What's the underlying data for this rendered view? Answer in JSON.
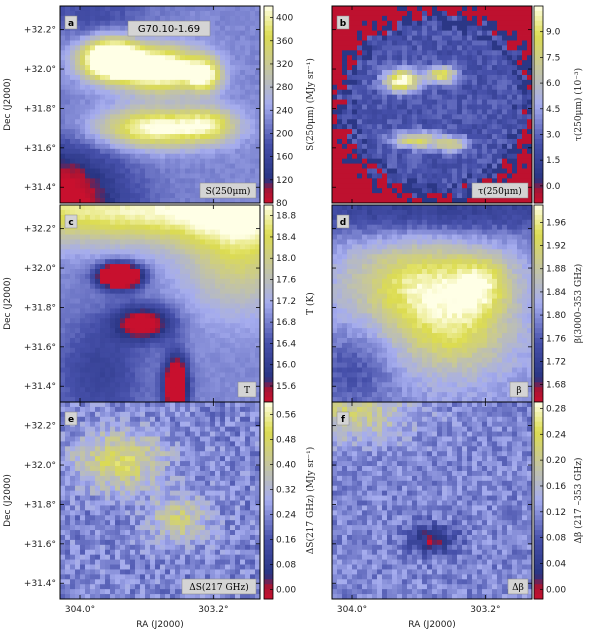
{
  "chart_data": {
    "type": "heatmap",
    "title": "G70.10-1.69",
    "xlabel": "RA (J2000)",
    "ylabel": "Dec (J2000)",
    "x_ticks": [
      "304.0°",
      "303.2°"
    ],
    "x_tick_values": [
      304.0,
      303.2
    ],
    "y_ticks": [
      "+32.2°",
      "+32.0°",
      "+31.8°",
      "+31.6°",
      "+31.4°"
    ],
    "y_tick_values": [
      32.2,
      32.0,
      31.8,
      31.6,
      31.4
    ],
    "colors": {
      "low": "#c8102e",
      "mid_low": "#2b3a8c",
      "mid": "#a6aef0",
      "high": "#e0e060",
      "peak": "#ffffff"
    },
    "panels": [
      {
        "letter": "a",
        "name": "S(250μm)",
        "cbar_label": "S(250μm) (MJy sr⁻¹)",
        "cbar_ticks": [
          "80",
          "120",
          "160",
          "200",
          "240",
          "280",
          "320",
          "360",
          "400"
        ],
        "cbar_range": [
          80,
          420
        ],
        "blobs": [
          {
            "x": 0.25,
            "y": 0.27,
            "sx": 0.1,
            "sy": 0.07,
            "a": 1.0
          },
          {
            "x": 0.5,
            "y": 0.32,
            "sx": 0.14,
            "sy": 0.08,
            "a": 0.75
          },
          {
            "x": 0.72,
            "y": 0.35,
            "sx": 0.06,
            "sy": 0.06,
            "a": 0.55
          },
          {
            "x": 0.47,
            "y": 0.62,
            "sx": 0.2,
            "sy": 0.07,
            "a": 0.6
          },
          {
            "x": 0.75,
            "y": 0.6,
            "sx": 0.1,
            "sy": 0.06,
            "a": 0.35
          },
          {
            "x": -0.05,
            "y": 1.0,
            "sx": 0.25,
            "sy": 0.2,
            "a": -0.55
          },
          {
            "x": 0.15,
            "y": 0.05,
            "sx": 0.2,
            "sy": 0.08,
            "a": -0.15
          }
        ],
        "base": 0.42,
        "noise": 0.05
      },
      {
        "letter": "b",
        "name": "τ(250μm)",
        "cbar_label": "τ(250μm) (10⁻³)",
        "cbar_ticks": [
          "0.0",
          "1.5",
          "3.0",
          "4.5",
          "6.0",
          "7.5",
          "9.0"
        ],
        "cbar_range": [
          -1.0,
          10.5
        ],
        "blobs": [
          {
            "x": 0.35,
            "y": 0.38,
            "sx": 0.06,
            "sy": 0.04,
            "a": 0.75
          },
          {
            "x": 0.55,
            "y": 0.35,
            "sx": 0.05,
            "sy": 0.03,
            "a": 0.6
          },
          {
            "x": 0.42,
            "y": 0.68,
            "sx": 0.08,
            "sy": 0.03,
            "a": 0.5
          },
          {
            "x": 0.6,
            "y": 0.7,
            "sx": 0.06,
            "sy": 0.03,
            "a": 0.4
          }
        ],
        "base": 0.3,
        "noise": 0.14,
        "mask": {
          "cx": 0.52,
          "cy": 0.5,
          "rx": 0.5,
          "ry": 0.48
        }
      },
      {
        "letter": "c",
        "name": "T",
        "cbar_label": "T (K)",
        "cbar_ticks": [
          "15.6",
          "16.0",
          "16.4",
          "16.8",
          "17.2",
          "17.6",
          "18.0",
          "18.4",
          "18.8"
        ],
        "cbar_range": [
          15.3,
          19.0
        ],
        "blobs": [
          {
            "x": 0.3,
            "y": 0.36,
            "sx": 0.07,
            "sy": 0.04,
            "a": -1.1
          },
          {
            "x": 0.42,
            "y": 0.6,
            "sx": 0.1,
            "sy": 0.06,
            "a": -0.5
          },
          {
            "x": 0.58,
            "y": 0.92,
            "sx": 0.04,
            "sy": 0.1,
            "a": -0.8
          },
          {
            "x": 0.5,
            "y": 0.02,
            "sx": 0.9,
            "sy": 0.12,
            "a": 0.55
          },
          {
            "x": 0.9,
            "y": 0.25,
            "sx": 0.2,
            "sy": 0.2,
            "a": 0.35
          },
          {
            "x": 0.2,
            "y": 0.85,
            "sx": 0.15,
            "sy": 0.2,
            "a": -0.2
          }
        ],
        "base": 0.42,
        "noise": 0.04
      },
      {
        "letter": "d",
        "name": "β",
        "cbar_label": "β(3000–353 GHz)",
        "cbar_ticks": [
          "1.68",
          "1.72",
          "1.76",
          "1.80",
          "1.84",
          "1.88",
          "1.92",
          "1.96"
        ],
        "cbar_range": [
          1.65,
          1.99
        ],
        "blobs": [
          {
            "x": 0.45,
            "y": 0.4,
            "sx": 0.25,
            "sy": 0.15,
            "a": 0.45
          },
          {
            "x": 0.6,
            "y": 0.65,
            "sx": 0.2,
            "sy": 0.15,
            "a": 0.35
          },
          {
            "x": 0.75,
            "y": 0.4,
            "sx": 0.1,
            "sy": 0.1,
            "a": 0.3
          },
          {
            "x": 0.5,
            "y": 0.02,
            "sx": 0.8,
            "sy": 0.1,
            "a": -0.25
          },
          {
            "x": 0.1,
            "y": 0.85,
            "sx": 0.15,
            "sy": 0.15,
            "a": -0.15
          }
        ],
        "base": 0.45,
        "noise": 0.08
      },
      {
        "letter": "e",
        "name": "ΔS(217 GHz)",
        "cbar_label": "ΔS(217 GHz) (MJy sr⁻¹)",
        "cbar_ticks": [
          "0.00",
          "0.08",
          "0.16",
          "0.24",
          "0.32",
          "0.40",
          "0.48",
          "0.56"
        ],
        "cbar_range": [
          -0.03,
          0.6
        ],
        "blobs": [
          {
            "x": 0.3,
            "y": 0.3,
            "sx": 0.15,
            "sy": 0.1,
            "a": 0.4
          },
          {
            "x": 0.6,
            "y": 0.6,
            "sx": 0.1,
            "sy": 0.08,
            "a": 0.3
          }
        ],
        "base": 0.42,
        "noise": 0.2
      },
      {
        "letter": "f",
        "name": "Δβ",
        "cbar_label": "Δβ (217 –353 GHz)",
        "cbar_ticks": [
          "0.00",
          "0.04",
          "0.08",
          "0.12",
          "0.16",
          "0.20",
          "0.24",
          "0.28"
        ],
        "cbar_range": [
          -0.015,
          0.29
        ],
        "blobs": [
          {
            "x": 0.1,
            "y": 0.05,
            "sx": 0.2,
            "sy": 0.1,
            "a": 0.3
          },
          {
            "x": 0.5,
            "y": 0.7,
            "sx": 0.08,
            "sy": 0.05,
            "a": -0.35
          }
        ],
        "base": 0.42,
        "noise": 0.18
      }
    ]
  }
}
